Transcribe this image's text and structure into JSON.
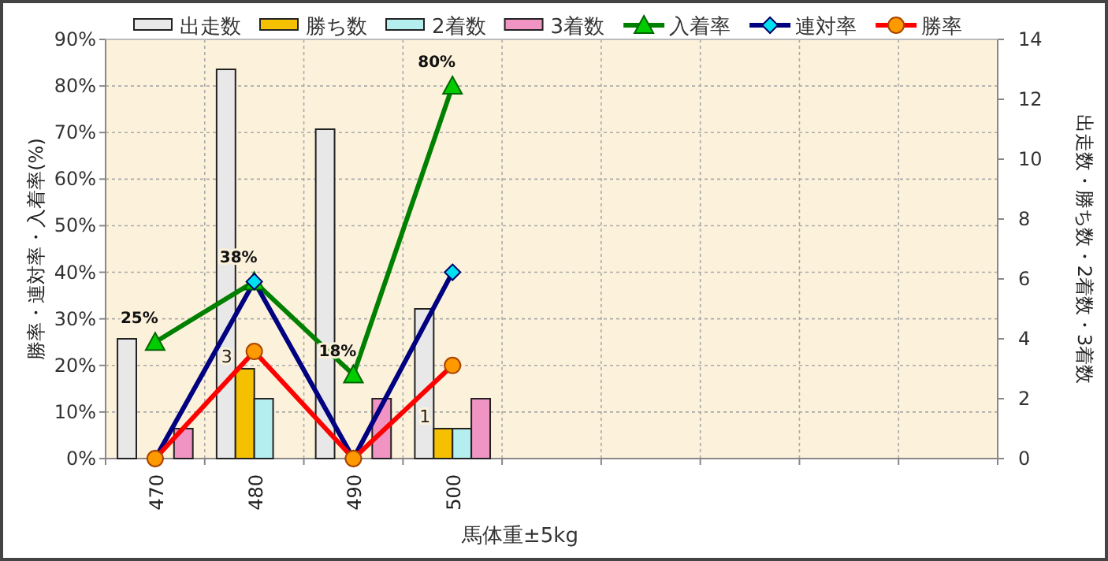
{
  "chart_data": {
    "type": "bar",
    "xlabel": "馬体重±5kg",
    "ylabel": "勝率・連対率・入着率(%)",
    "y2label": "出走数・勝ち数・2着数・3着数",
    "categories": [
      "470",
      "480",
      "490",
      "500",
      null,
      null,
      null,
      null,
      null
    ],
    "series": [
      {
        "name": "出走数",
        "axis": "y2",
        "color": "#e8e8e8",
        "values": [
          4,
          13,
          11,
          5,
          null,
          null,
          null,
          null,
          null
        ]
      },
      {
        "name": "勝ち数",
        "axis": "y2",
        "color": "#f5c000",
        "values": [
          0,
          3,
          0,
          1,
          null,
          null,
          null,
          null,
          null
        ],
        "value_labels": [
          null,
          "3",
          null,
          "1",
          null,
          null,
          null,
          null,
          null
        ]
      },
      {
        "name": "2着数",
        "axis": "y2",
        "color": "#b4eeee",
        "values": [
          0,
          2,
          0,
          1,
          null,
          null,
          null,
          null,
          null
        ]
      },
      {
        "name": "3着数",
        "axis": "y2",
        "color": "#f094c4",
        "values": [
          1,
          0,
          2,
          2,
          null,
          null,
          null,
          null,
          null
        ]
      },
      {
        "name": "入着率",
        "type": "line",
        "axis": "y",
        "color": "#008000",
        "marker": "triangle",
        "colors": [
          "#00cc00",
          "#00cc00",
          "#00cc00",
          "#00cc00",
          null,
          null,
          null,
          null,
          null
        ],
        "values": [
          25,
          38,
          18,
          80,
          null,
          null,
          null,
          null,
          null
        ],
        "value_labels": [
          "25%",
          "38%",
          "18%",
          "80%",
          null,
          null,
          null,
          null,
          null
        ]
      },
      {
        "name": "連対率",
        "type": "line",
        "axis": "y",
        "color": "#000080",
        "marker": "diamond",
        "colors": [
          "#00e0f0",
          "#00e0f0",
          "#00e0f0",
          "#00e0f0",
          null,
          null,
          null,
          null,
          null
        ],
        "values": [
          0,
          38,
          0,
          40,
          null,
          null,
          null,
          null,
          null
        ]
      },
      {
        "name": "勝率",
        "type": "line",
        "axis": "y",
        "color": "#ff0000",
        "marker": "circle",
        "colors": [
          "#ff9900",
          "#ff9900",
          "#ff9900",
          "#ff9900",
          null,
          null,
          null,
          null,
          null
        ],
        "values": [
          0,
          23,
          0,
          20,
          null,
          null,
          null,
          null,
          null
        ]
      }
    ],
    "ylim": [
      0,
      90
    ],
    "yticks": [
      {
        "value": 0,
        "label": "0%"
      },
      {
        "value": 10,
        "label": "10%"
      },
      {
        "value": 20,
        "label": "20%"
      },
      {
        "value": 30,
        "label": "30%"
      },
      {
        "value": 40,
        "label": "40%"
      },
      {
        "value": 50,
        "label": "50%"
      },
      {
        "value": 60,
        "label": "60%"
      },
      {
        "value": 70,
        "label": "70%"
      },
      {
        "value": 80,
        "label": "80%"
      },
      {
        "value": 90,
        "label": "90%"
      }
    ],
    "y2lim": [
      0,
      14
    ],
    "y2ticks": [
      0,
      2,
      4,
      6,
      8,
      10,
      12,
      14
    ],
    "grid": true,
    "legend": "top",
    "line_style": "solid"
  }
}
